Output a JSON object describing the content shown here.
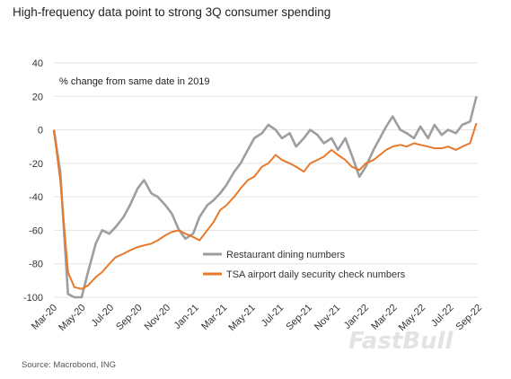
{
  "title": "High-frequency data point to strong 3Q consumer spending",
  "source": "Source: Macrobond, ING",
  "watermark": "FastBull",
  "chart_data": {
    "type": "line",
    "annotation": "% change from same date in 2019",
    "ylim": [
      -100,
      40
    ],
    "y_ticks": [
      40,
      20,
      0,
      -20,
      -40,
      -60,
      -80,
      -100
    ],
    "x_tick_labels": [
      "Mar-20",
      "May-20",
      "Jul-20",
      "Sep-20",
      "Nov-20",
      "Jan-21",
      "Mar-21",
      "May-21",
      "Jul-21",
      "Sep-21",
      "Nov-21",
      "Jan-22",
      "Mar-22",
      "May-22",
      "Jul-22",
      "Sep-22"
    ],
    "grid": "horizontal",
    "legend_position": "inside-bottom-right",
    "series": [
      {
        "name": "Restaurant dining numbers",
        "color": "#9e9e9e",
        "x": [
          "2020-03-01",
          "2020-03-15",
          "2020-04-01",
          "2020-04-15",
          "2020-05-01",
          "2020-05-15",
          "2020-06-01",
          "2020-06-15",
          "2020-07-01",
          "2020-07-15",
          "2020-08-01",
          "2020-08-15",
          "2020-09-01",
          "2020-09-15",
          "2020-10-01",
          "2020-10-15",
          "2020-11-01",
          "2020-11-15",
          "2020-12-01",
          "2020-12-15",
          "2021-01-01",
          "2021-01-15",
          "2021-02-01",
          "2021-02-15",
          "2021-03-01",
          "2021-03-15",
          "2021-04-01",
          "2021-04-15",
          "2021-05-01",
          "2021-05-15",
          "2021-06-01",
          "2021-06-15",
          "2021-07-01",
          "2021-07-15",
          "2021-08-01",
          "2021-08-15",
          "2021-09-01",
          "2021-09-15",
          "2021-10-01",
          "2021-10-15",
          "2021-11-01",
          "2021-11-15",
          "2021-12-01",
          "2021-12-15",
          "2022-01-01",
          "2022-01-15",
          "2022-02-01",
          "2022-02-15",
          "2022-03-01",
          "2022-03-15",
          "2022-04-01",
          "2022-04-15",
          "2022-05-01",
          "2022-05-15",
          "2022-06-01",
          "2022-06-15",
          "2022-07-01",
          "2022-07-15",
          "2022-08-01",
          "2022-08-15",
          "2022-09-01",
          "2022-09-15"
        ],
        "values": [
          0,
          -25,
          -98,
          -100,
          -100,
          -85,
          -68,
          -60,
          -62,
          -58,
          -52,
          -45,
          -35,
          -30,
          -38,
          -40,
          -45,
          -50,
          -60,
          -65,
          -62,
          -52,
          -45,
          -42,
          -38,
          -33,
          -25,
          -20,
          -12,
          -5,
          -2,
          3,
          0,
          -5,
          -2,
          -10,
          -5,
          0,
          -3,
          -8,
          -5,
          -12,
          -5,
          -15,
          -28,
          -22,
          -12,
          -5,
          2,
          8,
          0,
          -2,
          -5,
          2,
          -5,
          3,
          -3,
          0,
          -2,
          3,
          5,
          20
        ]
      },
      {
        "name": "TSA airport daily security check numbers",
        "color": "#e8782a",
        "x": [
          "2020-03-01",
          "2020-03-15",
          "2020-04-01",
          "2020-04-15",
          "2020-05-01",
          "2020-05-15",
          "2020-06-01",
          "2020-06-15",
          "2020-07-01",
          "2020-07-15",
          "2020-08-01",
          "2020-08-15",
          "2020-09-01",
          "2020-09-15",
          "2020-10-01",
          "2020-10-15",
          "2020-11-01",
          "2020-11-15",
          "2020-12-01",
          "2020-12-15",
          "2021-01-01",
          "2021-01-15",
          "2021-02-01",
          "2021-02-15",
          "2021-03-01",
          "2021-03-15",
          "2021-04-01",
          "2021-04-15",
          "2021-05-01",
          "2021-05-15",
          "2021-06-01",
          "2021-06-15",
          "2021-07-01",
          "2021-07-15",
          "2021-08-01",
          "2021-08-15",
          "2021-09-01",
          "2021-09-15",
          "2021-10-01",
          "2021-10-15",
          "2021-11-01",
          "2021-11-15",
          "2021-12-01",
          "2021-12-15",
          "2022-01-01",
          "2022-01-15",
          "2022-02-01",
          "2022-02-15",
          "2022-03-01",
          "2022-03-15",
          "2022-04-01",
          "2022-04-15",
          "2022-05-01",
          "2022-05-15",
          "2022-06-01",
          "2022-06-15",
          "2022-07-01",
          "2022-07-15",
          "2022-08-01",
          "2022-08-15",
          "2022-09-01",
          "2022-09-15"
        ],
        "values": [
          0,
          -30,
          -85,
          -94,
          -95,
          -93,
          -88,
          -85,
          -80,
          -76,
          -74,
          -72,
          -70,
          -69,
          -68,
          -66,
          -63,
          -61,
          -60,
          -62,
          -64,
          -66,
          -60,
          -55,
          -48,
          -45,
          -40,
          -35,
          -30,
          -28,
          -22,
          -20,
          -15,
          -18,
          -20,
          -22,
          -25,
          -20,
          -18,
          -16,
          -12,
          -15,
          -18,
          -22,
          -24,
          -20,
          -18,
          -15,
          -12,
          -10,
          -9,
          -10,
          -8,
          -9,
          -10,
          -11,
          -11,
          -10,
          -12,
          -10,
          -8,
          4
        ]
      }
    ]
  }
}
